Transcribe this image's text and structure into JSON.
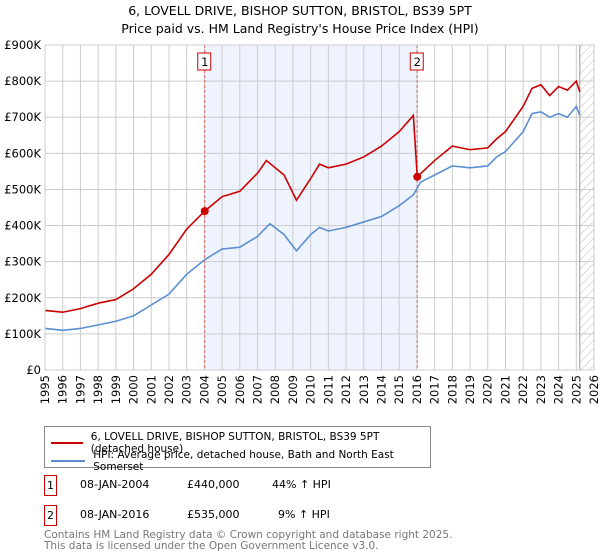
{
  "chart_data": {
    "type": "line",
    "title": "6, LOVELL DRIVE, BISHOP SUTTON, BRISTOL, BS39 5PT",
    "subtitle": "Price paid vs. HM Land Registry's House Price Index (HPI)",
    "xlim": [
      1995,
      2026
    ],
    "ylim": [
      0,
      900000
    ],
    "x_ticks": [
      "1995",
      "1996",
      "1997",
      "1998",
      "1999",
      "2000",
      "2001",
      "2002",
      "2003",
      "2004",
      "2005",
      "2006",
      "2007",
      "2008",
      "2009",
      "2010",
      "2011",
      "2012",
      "2013",
      "2014",
      "2015",
      "2016",
      "2017",
      "2018",
      "2019",
      "2020",
      "2021",
      "2022",
      "2023",
      "2024",
      "2025",
      "2026"
    ],
    "y_ticks": [
      {
        "v": 0,
        "label": "£0"
      },
      {
        "v": 100000,
        "label": "£100K"
      },
      {
        "v": 200000,
        "label": "£200K"
      },
      {
        "v": 300000,
        "label": "£300K"
      },
      {
        "v": 400000,
        "label": "£400K"
      },
      {
        "v": 500000,
        "label": "£500K"
      },
      {
        "v": 600000,
        "label": "£600K"
      },
      {
        "v": 700000,
        "label": "£700K"
      },
      {
        "v": 800000,
        "label": "£800K"
      },
      {
        "v": 900000,
        "label": "£900K"
      }
    ],
    "grid": true,
    "shaded_region": [
      2004.02,
      2016.02
    ],
    "forecast_hatch_from": 2025.2,
    "series": [
      {
        "name": "6, LOVELL DRIVE, BISHOP SUTTON, BRISTOL, BS39 5PT (detached house)",
        "color": "#cc0000",
        "x": [
          1995,
          1996,
          1997,
          1998,
          1999,
          2000,
          2001,
          2002,
          2003,
          2004.02,
          2005,
          2006,
          2007,
          2007.5,
          2008.5,
          2009.2,
          2010,
          2010.5,
          2011,
          2012,
          2013,
          2014,
          2015,
          2015.8,
          2016.02,
          2017,
          2018,
          2019,
          2020,
          2020.5,
          2021,
          2022,
          2022.5,
          2023,
          2023.5,
          2024,
          2024.5,
          2025,
          2025.2
        ],
        "values": [
          165000,
          160000,
          170000,
          185000,
          195000,
          225000,
          265000,
          320000,
          390000,
          440000,
          480000,
          495000,
          545000,
          580000,
          540000,
          470000,
          530000,
          570000,
          560000,
          570000,
          590000,
          620000,
          660000,
          705000,
          535000,
          580000,
          620000,
          610000,
          615000,
          640000,
          660000,
          730000,
          780000,
          790000,
          760000,
          785000,
          775000,
          800000,
          770000
        ]
      },
      {
        "name": "HPI: Average price, detached house, Bath and North East Somerset",
        "color": "#5b8fd0",
        "x": [
          1995,
          1996,
          1997,
          1998,
          1999,
          2000,
          2001,
          2002,
          2003,
          2004,
          2005,
          2006,
          2007,
          2007.7,
          2008.5,
          2009.2,
          2010,
          2010.5,
          2011,
          2012,
          2013,
          2014,
          2015,
          2015.8,
          2016.2,
          2017,
          2018,
          2019,
          2020,
          2020.5,
          2021,
          2022,
          2022.5,
          2023,
          2023.5,
          2024,
          2024.5,
          2025,
          2025.2
        ],
        "values": [
          115000,
          110000,
          115000,
          125000,
          135000,
          150000,
          180000,
          210000,
          265000,
          305000,
          335000,
          340000,
          370000,
          405000,
          375000,
          330000,
          375000,
          395000,
          385000,
          395000,
          410000,
          425000,
          455000,
          485000,
          520000,
          540000,
          565000,
          560000,
          565000,
          590000,
          605000,
          660000,
          710000,
          715000,
          700000,
          710000,
          700000,
          730000,
          705000
        ]
      }
    ],
    "sales": [
      {
        "n": "1",
        "x": 2004.02,
        "value": 440000,
        "date": "08-JAN-2004",
        "price": "£440,000",
        "hpi": "44% ↑ HPI"
      },
      {
        "n": "2",
        "x": 2016.02,
        "value": 535000,
        "date": "08-JAN-2016",
        "price": "£535,000",
        "hpi": "9% ↑ HPI"
      }
    ]
  },
  "footer": {
    "line1": "Contains HM Land Registry data © Crown copyright and database right 2025.",
    "line2": "This data is licensed under the Open Government Licence v3.0."
  }
}
